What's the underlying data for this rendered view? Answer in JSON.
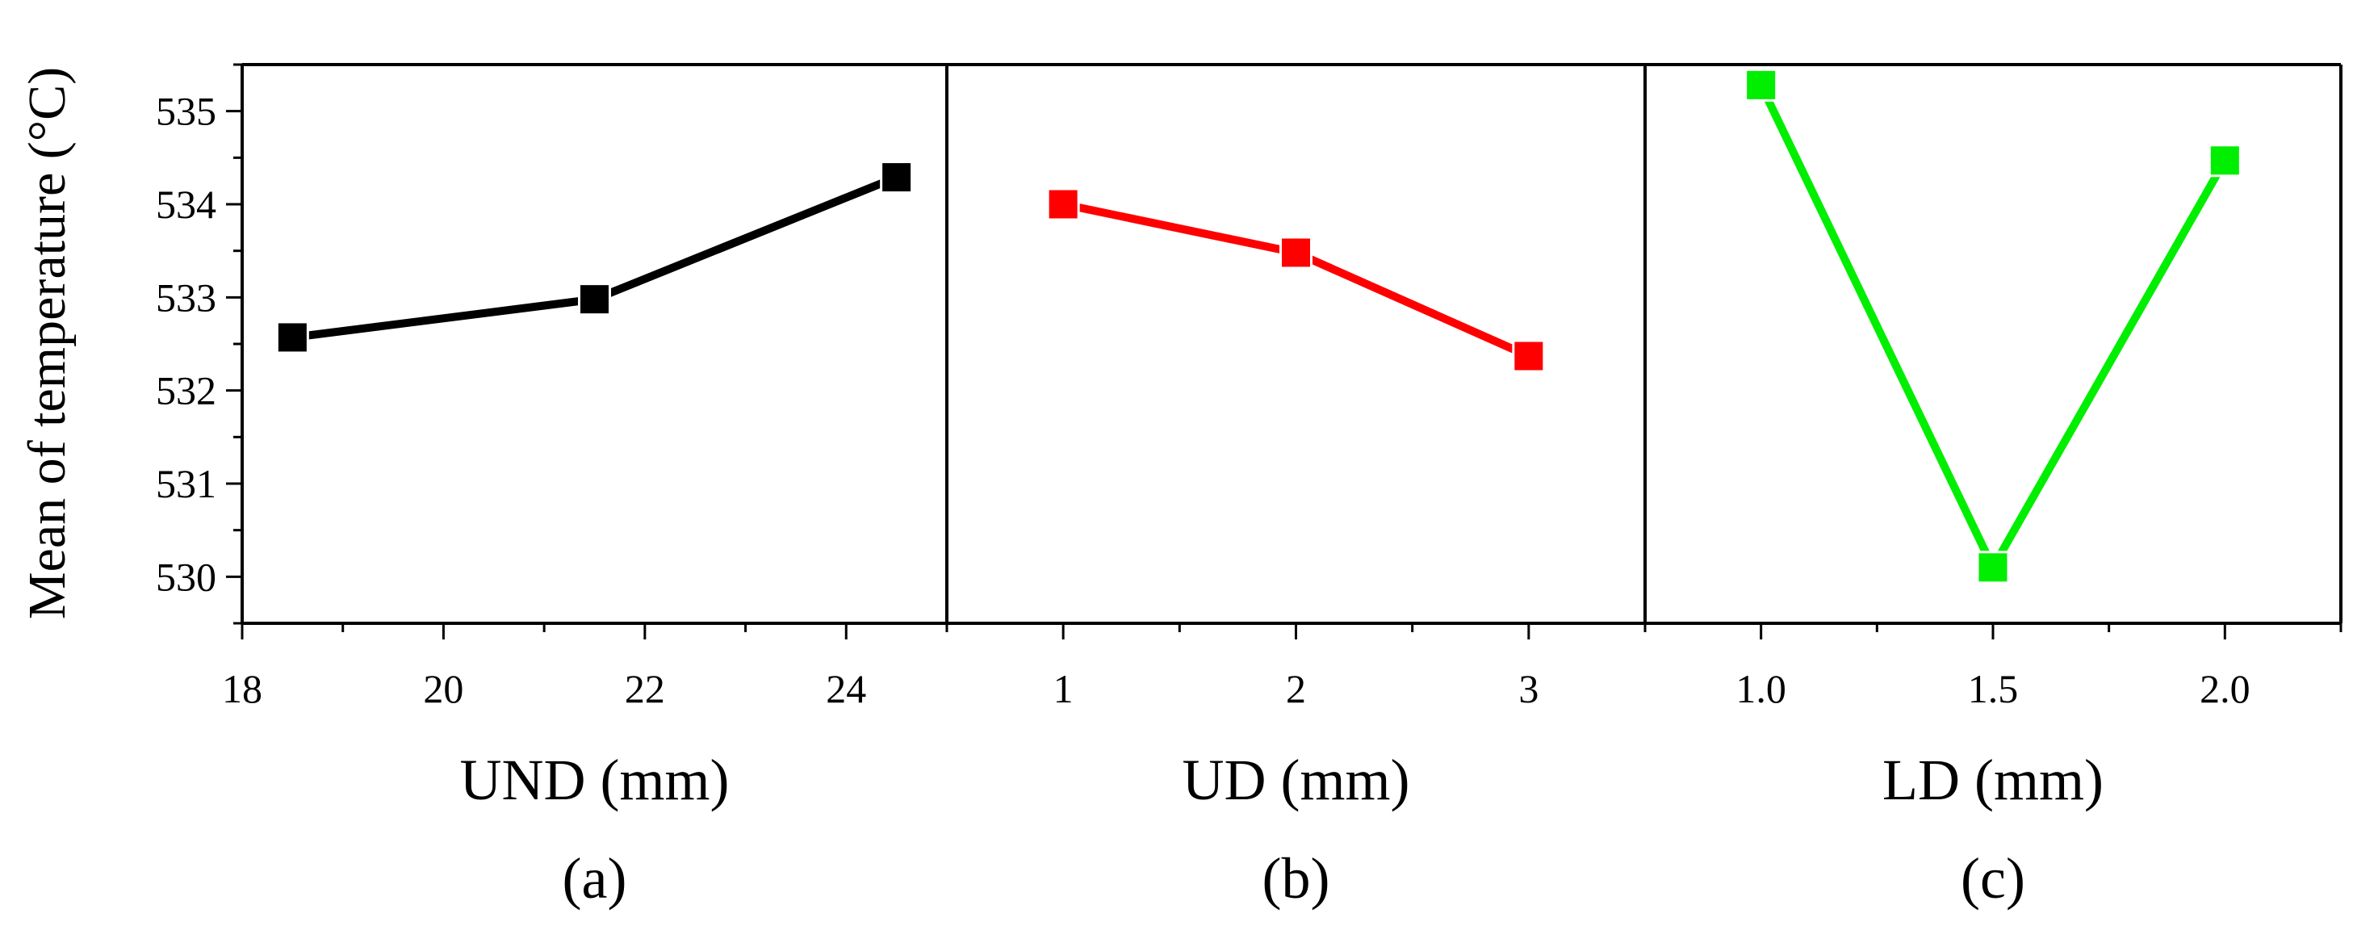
{
  "y_axis": {
    "label": "Mean of temperature (°C)"
  },
  "chart_data": [
    {
      "type": "line",
      "panel_label": "(a)",
      "xlabel": "UND (mm)",
      "ylabel": "Mean of temperature (°C)",
      "x": [
        18.5,
        21.5,
        24.5
      ],
      "series": [
        {
          "values": [
            532.57,
            532.98,
            534.29
          ],
          "color": "#000000"
        }
      ],
      "xlim": [
        18,
        25
      ],
      "x_ticks": [
        18,
        20,
        22,
        24
      ],
      "x_tick_labels": [
        "18",
        "20",
        "22",
        "24"
      ],
      "ylim": [
        529.5,
        535.5
      ],
      "y_ticks": [
        530,
        531,
        532,
        533,
        534,
        535
      ],
      "y_tick_labels": [
        "530",
        "531",
        "532",
        "533",
        "534",
        "535"
      ],
      "marker": "square",
      "grid": false
    },
    {
      "type": "line",
      "panel_label": "(b)",
      "xlabel": "UD (mm)",
      "ylabel": "",
      "x": [
        1,
        2,
        3
      ],
      "series": [
        {
          "values": [
            534.0,
            533.48,
            532.37
          ],
          "color": "#ff0000"
        }
      ],
      "xlim": [
        0.5,
        3.5
      ],
      "x_ticks": [
        1,
        2,
        3
      ],
      "x_tick_labels": [
        "1",
        "2",
        "3"
      ],
      "ylim": [
        529.5,
        535.5
      ],
      "marker": "square",
      "grid": false
    },
    {
      "type": "line",
      "panel_label": "(c)",
      "xlabel": "LD (mm)",
      "ylabel": "",
      "x": [
        1.0,
        1.5,
        2.0
      ],
      "series": [
        {
          "values": [
            535.28,
            530.1,
            534.47
          ],
          "color": "#00ee00"
        }
      ],
      "xlim": [
        0.75,
        2.25
      ],
      "x_ticks": [
        1.0,
        1.5,
        2.0
      ],
      "x_tick_labels": [
        "1.0",
        "1.5",
        "2.0"
      ],
      "ylim": [
        529.5,
        535.5
      ],
      "marker": "square",
      "grid": false
    }
  ]
}
